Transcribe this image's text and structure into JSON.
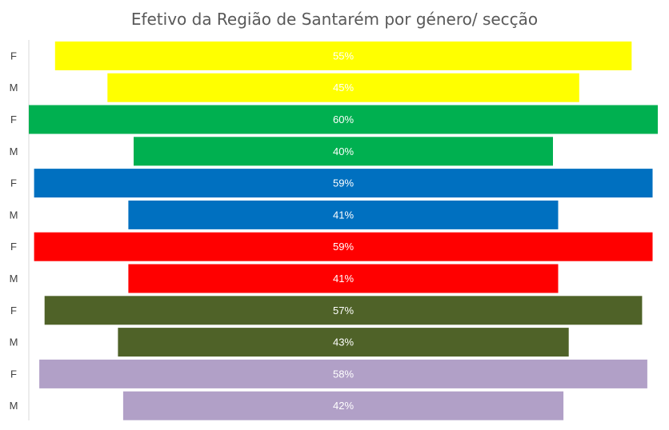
{
  "chart_data": {
    "type": "bar",
    "orientation": "horizontal",
    "style": "centered (funnel/pyramid)",
    "title": "Efetivo da Região de Santarém por género/ secção",
    "xlabel": "",
    "ylabel": "",
    "grid": false,
    "legend": "none",
    "categories": [
      "F",
      "M",
      "F",
      "M",
      "F",
      "M",
      "F",
      "M",
      "F",
      "M",
      "F",
      "M"
    ],
    "values": [
      55,
      45,
      60,
      40,
      59,
      41,
      59,
      41,
      57,
      43,
      58,
      42
    ],
    "labels": [
      "55%",
      "45%",
      "60%",
      "40%",
      "59%",
      "41%",
      "59%",
      "41%",
      "57%",
      "43%",
      "58%",
      "42%"
    ],
    "colors": [
      "#ffff00",
      "#ffff00",
      "#00b050",
      "#00b050",
      "#0070c0",
      "#0070c0",
      "#ff0000",
      "#ff0000",
      "#4f6228",
      "#4f6228",
      "#b1a0c7",
      "#b1a0c7"
    ]
  }
}
